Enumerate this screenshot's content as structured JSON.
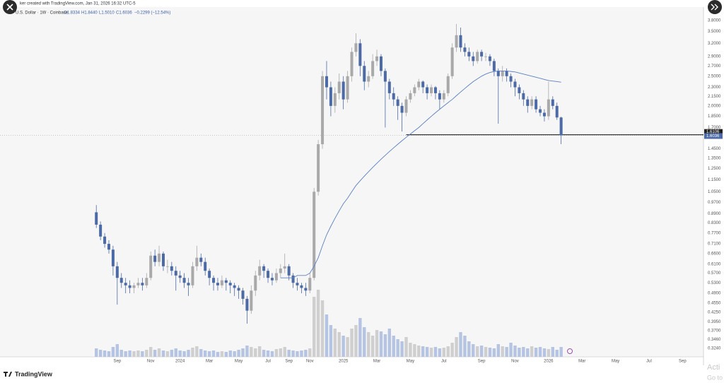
{
  "header": {
    "creator": "ker created with TradingView.com, Jan 31, 2026 16:32 UTC-5",
    "symbol": "U.S. Dollar · 1W · Coinbase",
    "ohlc": [
      "O1.8334",
      "H1.8440",
      "L1.5010",
      "C1.6036"
    ],
    "change": "−0.2299 (−12.54%)"
  },
  "chart_data": {
    "type": "candlestick",
    "open": [
      0.9,
      0.82,
      0.75,
      0.71,
      0.68,
      0.6,
      0.55,
      0.53,
      0.52,
      0.51,
      0.52,
      0.53,
      0.52,
      0.55,
      0.65,
      0.62,
      0.66,
      0.6,
      0.6,
      0.58,
      0.56,
      0.55,
      0.53,
      0.52,
      0.6,
      0.64,
      0.62,
      0.58,
      0.55,
      0.53,
      0.52,
      0.54,
      0.53,
      0.52,
      0.51,
      0.5,
      0.47,
      0.43,
      0.5,
      0.56,
      0.6,
      0.58,
      0.55,
      0.54,
      0.57,
      0.59,
      0.6,
      0.56,
      0.53,
      0.52,
      0.51,
      0.5,
      0.55,
      1.05,
      1.5,
      2.5,
      2.3,
      2.0,
      2.2,
      2.4,
      2.1,
      2.5,
      3.0,
      3.2,
      2.7,
      2.4,
      2.5,
      2.8,
      2.9,
      2.6,
      2.4,
      2.2,
      2.1,
      2.0,
      1.9,
      2.1,
      2.2,
      2.3,
      2.4,
      2.3,
      2.2,
      2.3,
      2.2,
      2.1,
      2.2,
      2.5,
      3.1,
      3.4,
      3.1,
      3.0,
      2.9,
      2.8,
      3.0,
      2.9,
      2.9,
      2.8,
      2.6,
      2.5,
      2.6,
      2.5,
      2.4,
      2.3,
      2.2,
      2.1,
      2.0,
      2.1,
      1.95,
      1.9,
      1.85,
      2.1,
      2.0,
      1.8334
    ],
    "high": [
      0.95,
      0.84,
      0.77,
      0.73,
      0.7,
      0.62,
      0.57,
      0.55,
      0.54,
      0.53,
      0.55,
      0.55,
      0.57,
      0.67,
      0.68,
      0.7,
      0.67,
      0.63,
      0.62,
      0.6,
      0.58,
      0.57,
      0.55,
      0.62,
      0.7,
      0.66,
      0.64,
      0.59,
      0.56,
      0.55,
      0.56,
      0.55,
      0.54,
      0.53,
      0.52,
      0.51,
      0.48,
      0.52,
      0.58,
      0.63,
      0.61,
      0.59,
      0.57,
      0.59,
      0.61,
      0.66,
      0.61,
      0.57,
      0.55,
      0.53,
      0.53,
      0.57,
      1.08,
      1.55,
      2.6,
      2.8,
      2.4,
      2.3,
      2.55,
      2.5,
      2.6,
      3.1,
      3.45,
      3.3,
      2.8,
      2.6,
      2.95,
      3.05,
      2.95,
      2.65,
      2.45,
      2.3,
      2.15,
      2.05,
      2.15,
      2.25,
      2.35,
      2.45,
      2.42,
      2.35,
      2.35,
      2.32,
      2.25,
      2.25,
      2.55,
      3.2,
      3.7,
      3.6,
      3.2,
      3.1,
      3.0,
      3.05,
      3.05,
      2.98,
      2.95,
      2.85,
      2.65,
      2.7,
      2.65,
      2.55,
      2.45,
      2.35,
      2.25,
      2.15,
      2.15,
      2.15,
      2.0,
      1.95,
      2.4,
      2.15,
      2.05,
      1.844
    ],
    "low": [
      0.8,
      0.73,
      0.69,
      0.66,
      0.56,
      0.45,
      0.51,
      0.49,
      0.49,
      0.49,
      0.51,
      0.5,
      0.51,
      0.54,
      0.6,
      0.6,
      0.58,
      0.57,
      0.56,
      0.5,
      0.53,
      0.51,
      0.48,
      0.51,
      0.58,
      0.6,
      0.56,
      0.52,
      0.5,
      0.5,
      0.51,
      0.5,
      0.49,
      0.48,
      0.47,
      0.45,
      0.39,
      0.42,
      0.48,
      0.54,
      0.55,
      0.53,
      0.52,
      0.53,
      0.55,
      0.57,
      0.54,
      0.51,
      0.5,
      0.49,
      0.48,
      0.49,
      0.54,
      1.02,
      1.45,
      2.1,
      1.85,
      1.9,
      2.1,
      1.95,
      2.05,
      2.4,
      2.9,
      2.5,
      2.25,
      2.3,
      2.45,
      2.7,
      2.5,
      1.7,
      2.1,
      2.0,
      1.8,
      1.65,
      1.85,
      2.05,
      2.15,
      2.25,
      2.2,
      2.1,
      2.15,
      2.1,
      1.95,
      2.05,
      2.15,
      2.45,
      3.0,
      3.0,
      2.9,
      2.8,
      2.7,
      2.75,
      2.8,
      2.8,
      2.7,
      2.5,
      1.75,
      2.4,
      2.4,
      2.3,
      2.15,
      2.1,
      2.0,
      1.9,
      1.95,
      1.9,
      1.85,
      1.78,
      1.8,
      1.95,
      1.8,
      1.501
    ],
    "close": [
      0.82,
      0.75,
      0.71,
      0.68,
      0.6,
      0.55,
      0.53,
      0.52,
      0.51,
      0.52,
      0.53,
      0.52,
      0.55,
      0.65,
      0.62,
      0.66,
      0.6,
      0.6,
      0.58,
      0.56,
      0.55,
      0.53,
      0.52,
      0.6,
      0.64,
      0.62,
      0.58,
      0.55,
      0.53,
      0.52,
      0.54,
      0.53,
      0.52,
      0.51,
      0.5,
      0.47,
      0.43,
      0.5,
      0.56,
      0.6,
      0.58,
      0.55,
      0.54,
      0.57,
      0.59,
      0.6,
      0.56,
      0.53,
      0.52,
      0.51,
      0.5,
      0.55,
      1.05,
      1.5,
      2.5,
      2.3,
      2.0,
      2.2,
      2.4,
      2.1,
      2.5,
      3.0,
      3.2,
      2.7,
      2.4,
      2.5,
      2.8,
      2.9,
      2.6,
      2.4,
      2.2,
      2.1,
      2.0,
      1.9,
      2.1,
      2.2,
      2.3,
      2.4,
      2.3,
      2.2,
      2.3,
      2.2,
      2.1,
      2.2,
      2.5,
      3.1,
      3.4,
      3.1,
      3.0,
      2.9,
      2.8,
      3.0,
      2.9,
      2.9,
      2.8,
      2.6,
      2.5,
      2.6,
      2.5,
      2.4,
      2.3,
      2.2,
      2.1,
      2.0,
      2.1,
      1.95,
      1.9,
      1.85,
      2.1,
      2.0,
      1.8335,
      1.6036
    ],
    "volume": [
      12,
      10,
      9,
      8,
      14,
      18,
      10,
      8,
      9,
      8,
      9,
      8,
      10,
      14,
      10,
      12,
      9,
      8,
      10,
      12,
      9,
      8,
      10,
      13,
      15,
      11,
      9,
      8,
      9,
      7,
      8,
      7,
      9,
      8,
      10,
      12,
      16,
      14,
      12,
      15,
      10,
      9,
      8,
      11,
      12,
      14,
      10,
      9,
      8,
      9,
      10,
      12,
      85,
      95,
      80,
      60,
      45,
      40,
      35,
      30,
      28,
      40,
      45,
      55,
      42,
      35,
      30,
      38,
      36,
      32,
      40,
      30,
      25,
      22,
      28,
      20,
      18,
      16,
      15,
      14,
      13,
      14,
      12,
      13,
      15,
      20,
      28,
      35,
      30,
      22,
      18,
      15,
      16,
      14,
      13,
      12,
      18,
      15,
      14,
      20,
      16,
      13,
      14,
      12,
      15,
      13,
      14,
      12,
      11,
      14,
      10,
      14
    ],
    "up_color": "#a9a9a9",
    "down_color": "#4c6aa6",
    "up_volume_color": "#cfcfcf",
    "down_volume_color": "#b4c4e2",
    "ma": {
      "color": "#5a7fc4",
      "values": [
        null,
        null,
        null,
        null,
        null,
        null,
        null,
        null,
        null,
        null,
        null,
        null,
        null,
        null,
        null,
        null,
        null,
        null,
        null,
        null,
        null,
        null,
        null,
        null,
        null,
        null,
        null,
        null,
        null,
        null,
        null,
        null,
        null,
        null,
        null,
        null,
        null,
        null,
        null,
        null,
        null,
        null,
        null,
        null,
        0.55,
        0.55,
        0.55,
        0.55,
        0.56,
        0.56,
        0.56,
        0.57,
        0.6,
        0.64,
        0.7,
        0.76,
        0.81,
        0.86,
        0.91,
        0.96,
        1.0,
        1.05,
        1.1,
        1.14,
        1.18,
        1.22,
        1.26,
        1.3,
        1.34,
        1.38,
        1.42,
        1.46,
        1.5,
        1.54,
        1.58,
        1.62,
        1.66,
        1.7,
        1.75,
        1.8,
        1.85,
        1.9,
        1.95,
        2.0,
        2.05,
        2.1,
        2.16,
        2.22,
        2.28,
        2.34,
        2.4,
        2.45,
        2.5,
        2.54,
        2.57,
        2.59,
        2.6,
        2.6,
        2.6,
        2.59,
        2.58,
        2.56,
        2.54,
        2.52,
        2.5,
        2.48,
        2.46,
        2.44,
        2.42,
        2.41,
        2.4,
        2.39
      ]
    },
    "hline": {
      "value": 1.6106,
      "start": 74,
      "color": "#222222"
    },
    "log_scale": true,
    "grid": false,
    "ylim": [
      0.304,
      4.2
    ],
    "yticks": [
      {
        "value": 3.8,
        "label": "3.8000"
      },
      {
        "value": 3.5,
        "label": "3.5000"
      },
      {
        "value": 3.2,
        "label": "3.2000"
      },
      {
        "value": 2.9,
        "label": "2.9000"
      },
      {
        "value": 2.7,
        "label": "2.7000"
      },
      {
        "value": 2.5,
        "label": "2.5000"
      },
      {
        "value": 2.3,
        "label": "2.3000"
      },
      {
        "value": 2.15,
        "label": "2.1500"
      },
      {
        "value": 2,
        "label": "2.0000"
      },
      {
        "value": 1.85,
        "label": "1.8500"
      },
      {
        "value": 1.7,
        "label": "1.7000"
      },
      {
        "value": 1.45,
        "label": "1.4500"
      },
      {
        "value": 1.35,
        "label": "1.3500"
      },
      {
        "value": 1.25,
        "label": "1.2500"
      },
      {
        "value": 1.15,
        "label": "1.1500"
      },
      {
        "value": 1.05,
        "label": "1.0500"
      },
      {
        "value": 0.97,
        "label": "0.9700"
      },
      {
        "value": 0.89,
        "label": "0.8900"
      },
      {
        "value": 0.83,
        "label": "0.8300"
      },
      {
        "value": 0.77,
        "label": "0.7700"
      },
      {
        "value": 0.71,
        "label": "0.7100"
      },
      {
        "value": 0.66,
        "label": "0.6600"
      },
      {
        "value": 0.61,
        "label": "0.6100"
      },
      {
        "value": 0.57,
        "label": "0.5700"
      },
      {
        "value": 0.53,
        "label": "0.5300"
      },
      {
        "value": 0.49,
        "label": "0.4900"
      },
      {
        "value": 0.455,
        "label": "0.4550"
      },
      {
        "value": 0.425,
        "label": "0.4250"
      },
      {
        "value": 0.395,
        "label": "0.3950"
      },
      {
        "value": 0.37,
        "label": "0.3700"
      },
      {
        "value": 0.346,
        "label": "0.3460"
      },
      {
        "value": 0.324,
        "label": "0.3240"
      }
    ],
    "xlim": [
      -23,
      145
    ],
    "xticks": [
      {
        "value": 5,
        "label": "Sep"
      },
      {
        "value": 13,
        "label": "Nov"
      },
      {
        "value": 20,
        "label": "2024"
      },
      {
        "value": 27,
        "label": "Mar"
      },
      {
        "value": 34,
        "label": "May"
      },
      {
        "value": 41,
        "label": "Jul"
      },
      {
        "value": 46,
        "label": "Sep"
      },
      {
        "value": 51,
        "label": "Nov"
      },
      {
        "value": 59,
        "label": "2025"
      },
      {
        "value": 67,
        "label": "Mar"
      },
      {
        "value": 75,
        "label": "May"
      },
      {
        "value": 83,
        "label": "Jul"
      },
      {
        "value": 92,
        "label": "Sep"
      },
      {
        "value": 100,
        "label": "Nov"
      },
      {
        "value": 108,
        "label": "2026"
      },
      {
        "value": 116,
        "label": "Mar"
      },
      {
        "value": 124,
        "label": "May"
      },
      {
        "value": 132,
        "label": "Jul"
      },
      {
        "value": 140,
        "label": "Sep"
      }
    ]
  },
  "branding": "TradingView",
  "watermark": [
    "Acti",
    "Go to"
  ]
}
